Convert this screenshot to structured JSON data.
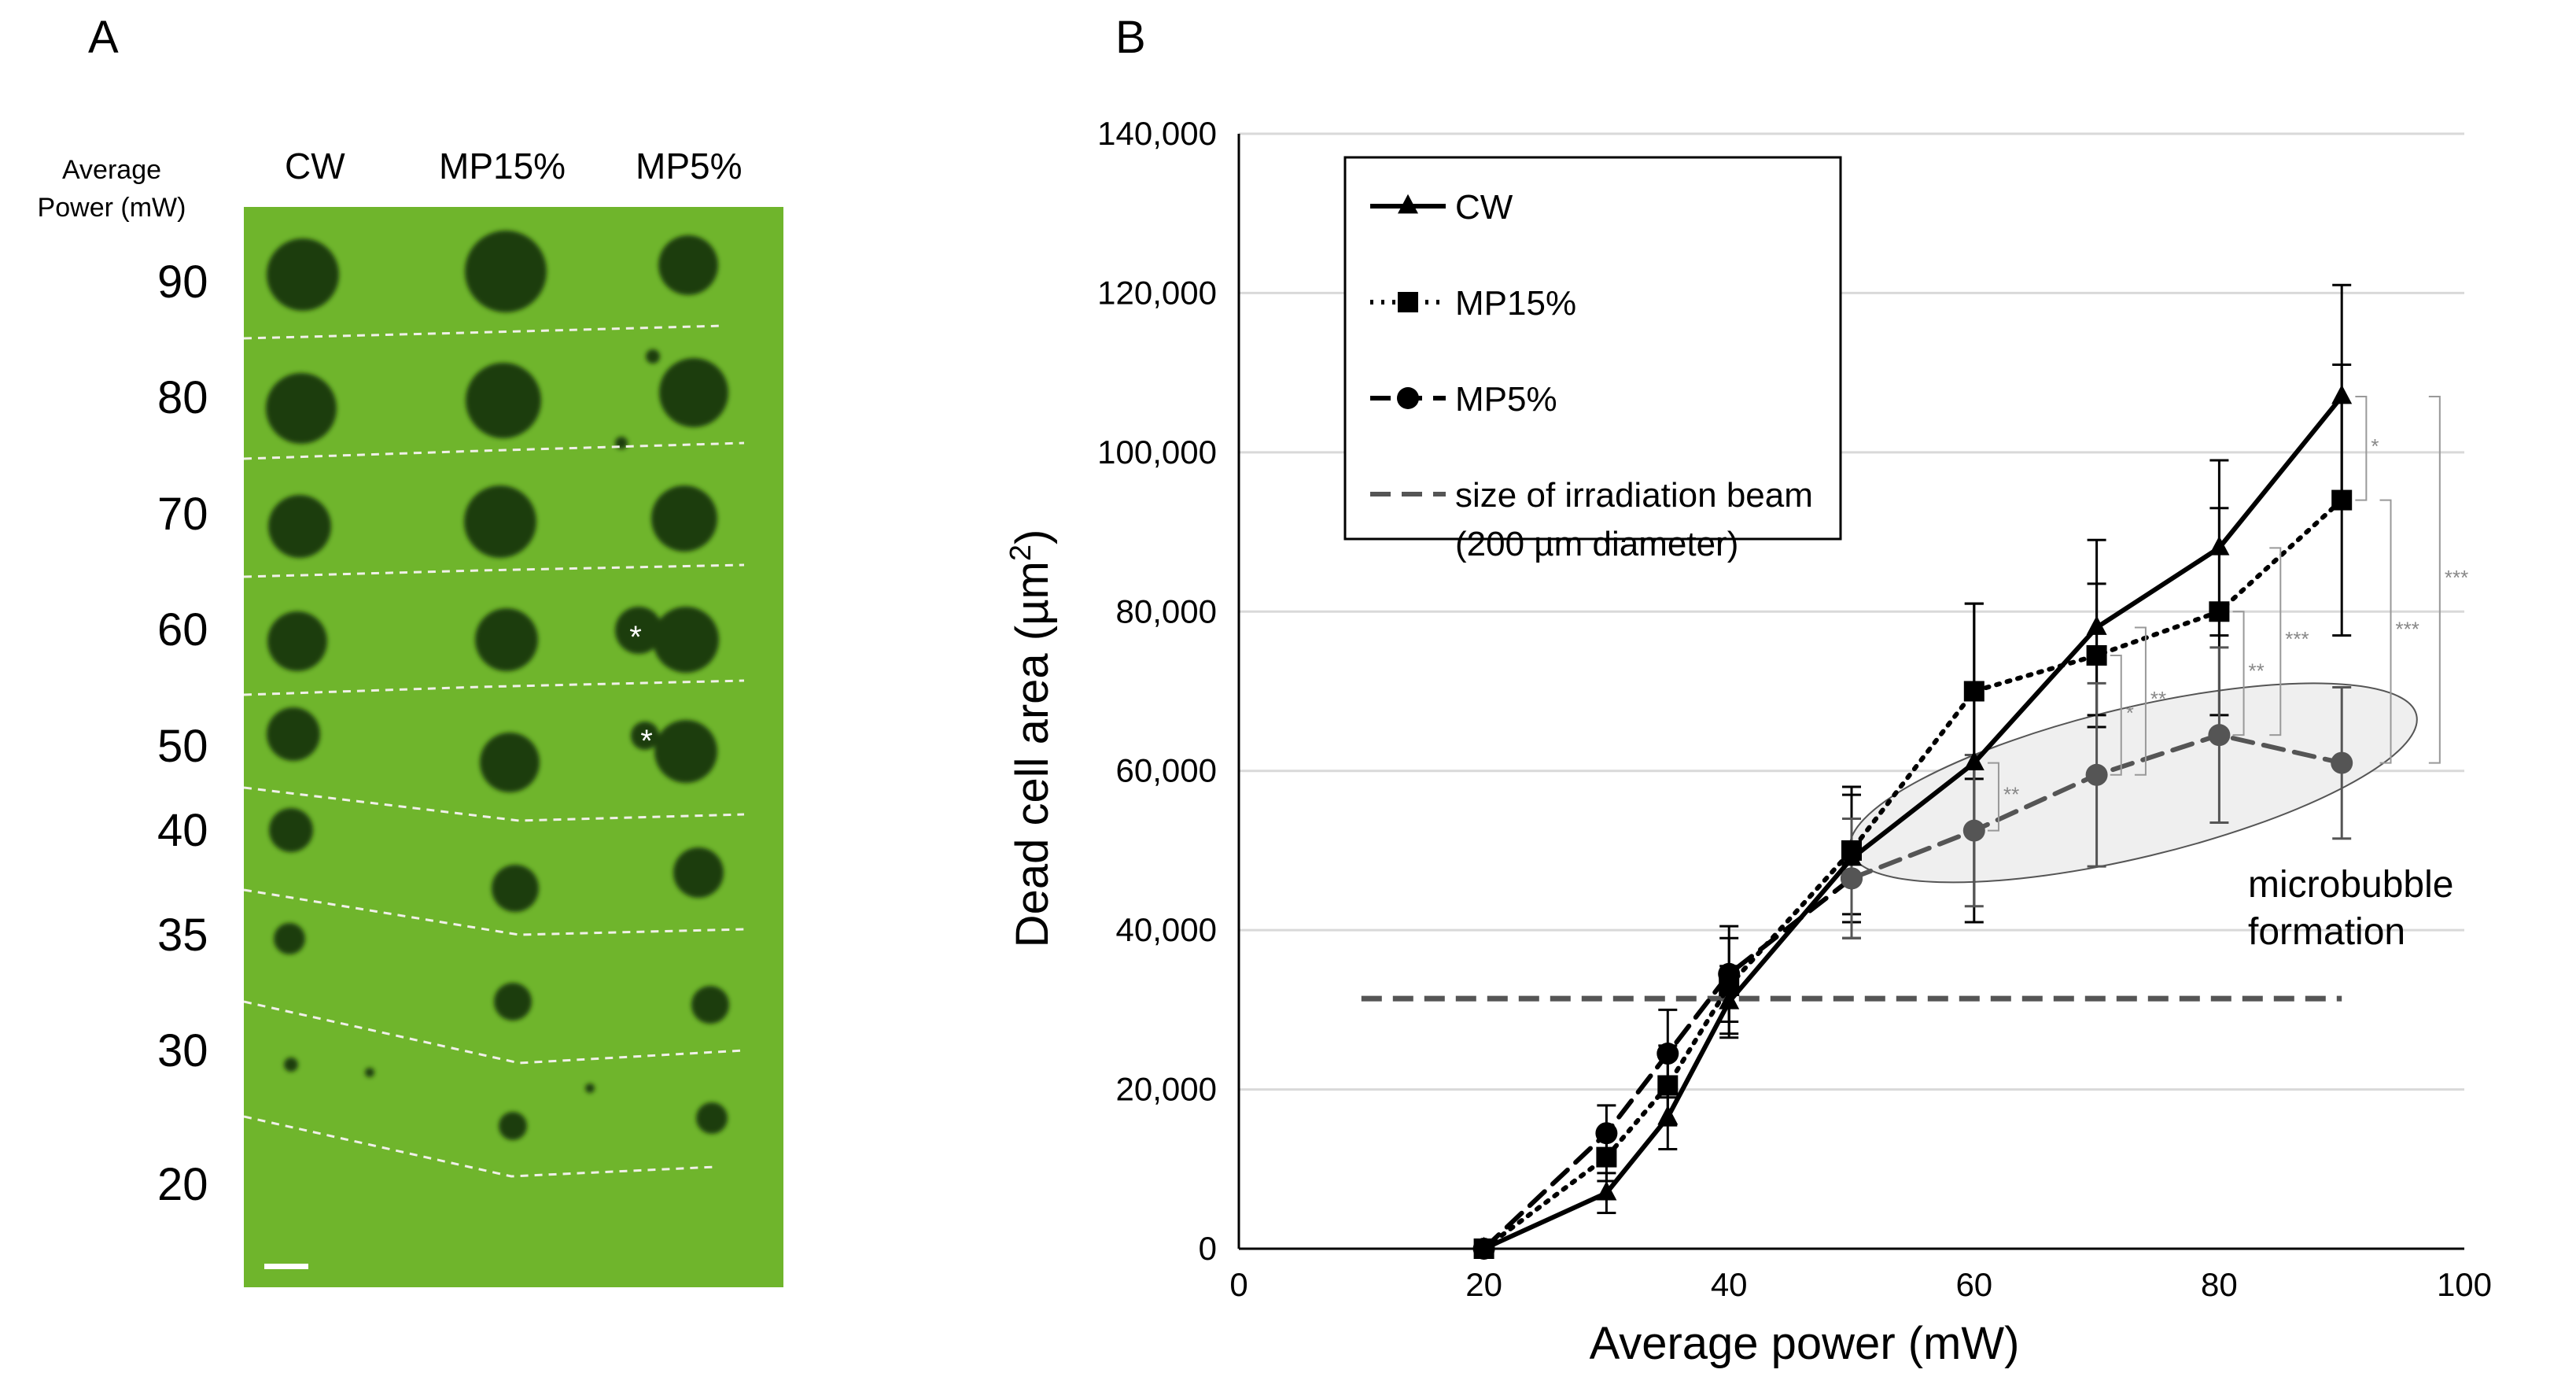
{
  "panel_a": {
    "letter": "A",
    "power_header_line1": "Average",
    "power_header_line2": "Power (mW)",
    "columns": [
      "CW",
      "MP15%",
      "MP5%"
    ],
    "rows": [
      "90",
      "80",
      "70",
      "60",
      "50",
      "40",
      "35",
      "30",
      "20"
    ],
    "asterisk": "*",
    "colors": {
      "background": "#6fb52c",
      "spot": "#1f3d10",
      "separator": "#f0f0e8"
    }
  },
  "panel_b": {
    "letter": "B",
    "annotation_line1": "microbubble",
    "annotation_line2": "formation"
  },
  "chart_data": {
    "type": "line",
    "xlabel": "Average power (mW)",
    "ylabel_main": "Dead cell area (µm",
    "ylabel_sup": "2",
    "ylabel_close": ")",
    "xlim": [
      0,
      100
    ],
    "ylim": [
      0,
      140000
    ],
    "xticks": [
      0,
      20,
      40,
      60,
      80,
      100
    ],
    "yticks": [
      0,
      20000,
      40000,
      60000,
      80000,
      100000,
      120000,
      140000
    ],
    "ytick_labels": [
      "0",
      "20,000",
      "40,000",
      "60,000",
      "80,000",
      "100,000",
      "120,000",
      "140,000"
    ],
    "grid": true,
    "series": [
      {
        "name": "CW",
        "marker": "triangle",
        "dash": "solid",
        "color": "#000000",
        "x": [
          20,
          30,
          35,
          40,
          50,
          60,
          70,
          80,
          90
        ],
        "y": [
          0,
          7000,
          16500,
          31000,
          49000,
          61000,
          78000,
          88000,
          107000
        ],
        "err": [
          0,
          2500,
          4000,
          4500,
          8000,
          20000,
          11000,
          11000,
          14000
        ]
      },
      {
        "name": "MP15%",
        "marker": "square",
        "dash": "dotted",
        "color": "#000000",
        "x": [
          20,
          30,
          35,
          40,
          50,
          60,
          70,
          80,
          90
        ],
        "y": [
          0,
          11500,
          20500,
          33000,
          50000,
          70000,
          74500,
          80000,
          94000
        ],
        "err": [
          0,
          3000,
          5000,
          6000,
          8000,
          11000,
          9000,
          13000,
          17000
        ]
      },
      {
        "name": "MP5%",
        "marker": "circle",
        "dash": "dashed",
        "color": "#000000",
        "x": [
          20,
          30,
          35,
          40,
          50
        ],
        "y": [
          0,
          14500,
          24500,
          34500,
          46500
        ],
        "err": [
          0,
          3500,
          5500,
          6000,
          7500
        ]
      },
      {
        "name": "MP5% (microbubble)",
        "marker": "circle",
        "dash": "dashed",
        "color": "#555555",
        "x": [
          50,
          60,
          70,
          80,
          90
        ],
        "y": [
          46500,
          52500,
          59500,
          64500,
          61000
        ],
        "err": [
          7500,
          9500,
          11500,
          11000,
          9500
        ]
      }
    ],
    "reference_line": {
      "label_line1": "size of irradiation beam",
      "label_line2": "(200 µm diameter)",
      "x": [
        10,
        90
      ],
      "y": 31400,
      "color": "#555555"
    },
    "legend": [
      {
        "label": "CW",
        "marker": "triangle",
        "dash": "solid"
      },
      {
        "label": "MP15%",
        "marker": "square",
        "dash": "dotted"
      },
      {
        "label": "MP5%",
        "marker": "circle",
        "dash": "dashed"
      },
      {
        "label": "size of irradiation beam",
        "label2": "(200 µm diameter)",
        "marker": "none",
        "dash": "dashed-gray"
      }
    ],
    "significance": [
      {
        "x": 62,
        "y1": 52500,
        "y2": 61000,
        "label": "**"
      },
      {
        "x": 72,
        "y1": 59500,
        "y2": 74500,
        "label": "*"
      },
      {
        "x": 74,
        "y1": 59500,
        "y2": 78000,
        "label": "**"
      },
      {
        "x": 82,
        "y1": 64500,
        "y2": 80000,
        "label": "**"
      },
      {
        "x": 85,
        "y1": 64500,
        "y2": 88000,
        "label": "***"
      },
      {
        "x": 92,
        "y1": 94000,
        "y2": 107000,
        "label": "*"
      },
      {
        "x": 94,
        "y1": 61000,
        "y2": 94000,
        "label": "***"
      },
      {
        "x": 98,
        "y1": 61000,
        "y2": 107000,
        "label": "***"
      }
    ]
  }
}
